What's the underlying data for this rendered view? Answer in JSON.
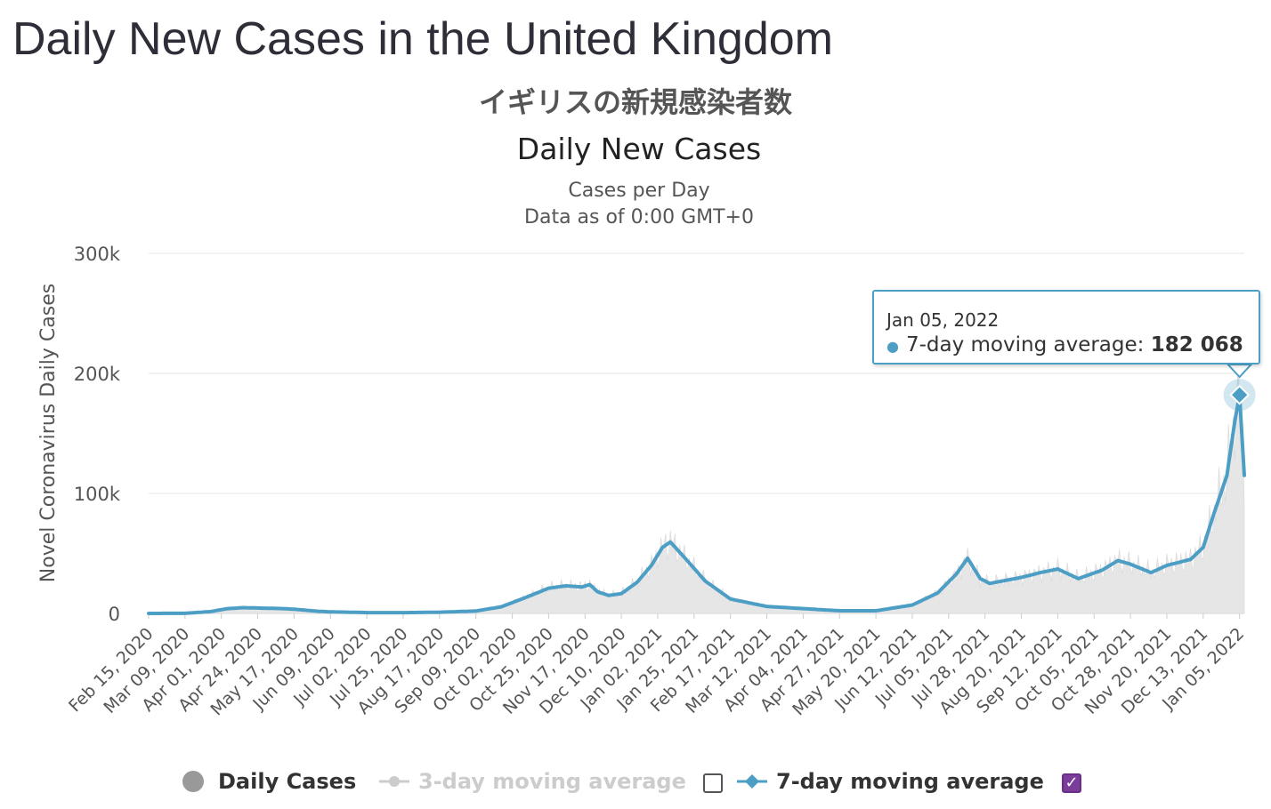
{
  "page_title": "Daily New Cases in the United Kingdom",
  "japanese_title": "イギリスの新規感染者数",
  "chart_data": {
    "type": "line",
    "title": "Daily New Cases",
    "subtitle_lines": [
      "Cases per Day",
      "Data as of 0:00 GMT+0"
    ],
    "ylabel": "Novel Coronavirus Daily Cases",
    "xlabel": "",
    "ylim": [
      0,
      300000
    ],
    "y_ticks": [
      {
        "value": 0,
        "label": "0"
      },
      {
        "value": 100000,
        "label": "100k"
      },
      {
        "value": 200000,
        "label": "200k"
      },
      {
        "value": 300000,
        "label": "300k"
      }
    ],
    "grid": true,
    "x_range": [
      "2020-02-15",
      "2022-01-08"
    ],
    "x_ticks": [
      "Feb 15, 2020",
      "Mar 09, 2020",
      "Apr 01, 2020",
      "Apr 24, 2020",
      "May 17, 2020",
      "Jun 09, 2020",
      "Jul 02, 2020",
      "Jul 25, 2020",
      "Aug 17, 2020",
      "Sep 09, 2020",
      "Oct 02, 2020",
      "Oct 25, 2020",
      "Nov 17, 2020",
      "Dec 10, 2020",
      "Jan 02, 2021",
      "Jan 25, 2021",
      "Feb 17, 2021",
      "Mar 12, 2021",
      "Apr 04, 2021",
      "Apr 27, 2021",
      "May 20, 2021",
      "Jun 12, 2021",
      "Jul 05, 2021",
      "Jul 28, 2021",
      "Aug 20, 2021",
      "Sep 12, 2021",
      "Oct 05, 2021",
      "Oct 28, 2021",
      "Nov 20, 2021",
      "Dec 13, 2021",
      "Jan 05, 2022"
    ],
    "series": [
      {
        "name": "7-day moving average",
        "color": "#4d9ec5",
        "points": [
          [
            "2020-02-15",
            0
          ],
          [
            "2020-03-09",
            100
          ],
          [
            "2020-03-25",
            1500
          ],
          [
            "2020-04-05",
            4000
          ],
          [
            "2020-04-15",
            4800
          ],
          [
            "2020-04-24",
            4500
          ],
          [
            "2020-05-10",
            4000
          ],
          [
            "2020-05-17",
            3500
          ],
          [
            "2020-06-01",
            1800
          ],
          [
            "2020-06-09",
            1300
          ],
          [
            "2020-07-02",
            700
          ],
          [
            "2020-07-25",
            650
          ],
          [
            "2020-08-17",
            1000
          ],
          [
            "2020-09-09",
            2000
          ],
          [
            "2020-09-25",
            5500
          ],
          [
            "2020-10-10",
            13000
          ],
          [
            "2020-10-25",
            21000
          ],
          [
            "2020-11-05",
            23000
          ],
          [
            "2020-11-15",
            22000
          ],
          [
            "2020-11-20",
            24000
          ],
          [
            "2020-11-25",
            18000
          ],
          [
            "2020-12-02",
            15000
          ],
          [
            "2020-12-10",
            16500
          ],
          [
            "2020-12-20",
            26000
          ],
          [
            "2020-12-29",
            40000
          ],
          [
            "2021-01-05",
            55000
          ],
          [
            "2021-01-10",
            59500
          ],
          [
            "2021-01-20",
            45000
          ],
          [
            "2021-02-01",
            27000
          ],
          [
            "2021-02-17",
            12000
          ],
          [
            "2021-03-12",
            5800
          ],
          [
            "2021-04-04",
            4000
          ],
          [
            "2021-04-27",
            2200
          ],
          [
            "2021-05-20",
            2200
          ],
          [
            "2021-06-12",
            7000
          ],
          [
            "2021-06-28",
            17000
          ],
          [
            "2021-07-10",
            33000
          ],
          [
            "2021-07-17",
            46000
          ],
          [
            "2021-07-25",
            29000
          ],
          [
            "2021-07-31",
            25000
          ],
          [
            "2021-08-20",
            30000
          ],
          [
            "2021-09-01",
            34000
          ],
          [
            "2021-09-12",
            37000
          ],
          [
            "2021-09-25",
            29000
          ],
          [
            "2021-10-10",
            36000
          ],
          [
            "2021-10-20",
            44000
          ],
          [
            "2021-10-28",
            41000
          ],
          [
            "2021-11-10",
            34000
          ],
          [
            "2021-11-20",
            40000
          ],
          [
            "2021-12-05",
            45000
          ],
          [
            "2021-12-13",
            55000
          ],
          [
            "2021-12-19",
            80000
          ],
          [
            "2021-12-28",
            115000
          ],
          [
            "2022-01-02",
            160000
          ],
          [
            "2022-01-05",
            182068
          ],
          [
            "2022-01-08",
            115000
          ]
        ]
      },
      {
        "name": "Daily Cases",
        "color": "#999999",
        "fill": "#e6e6e6",
        "note": "shown as light grey area behind the moving average"
      }
    ],
    "highlight_point": [
      "2022-01-05",
      182068
    ]
  },
  "tooltip": {
    "date": "Jan 05, 2022",
    "series_label": "7-day moving average:",
    "value": "182 068"
  },
  "legend": {
    "daily_cases": "Daily Cases",
    "three_day": "3-day moving average",
    "seven_day": "7-day moving average",
    "colors": {
      "daily": "#999999",
      "three_day": "#cccccc",
      "seven_day": "#4d9ec5",
      "checkbox_on": "#7a3d9a"
    }
  }
}
